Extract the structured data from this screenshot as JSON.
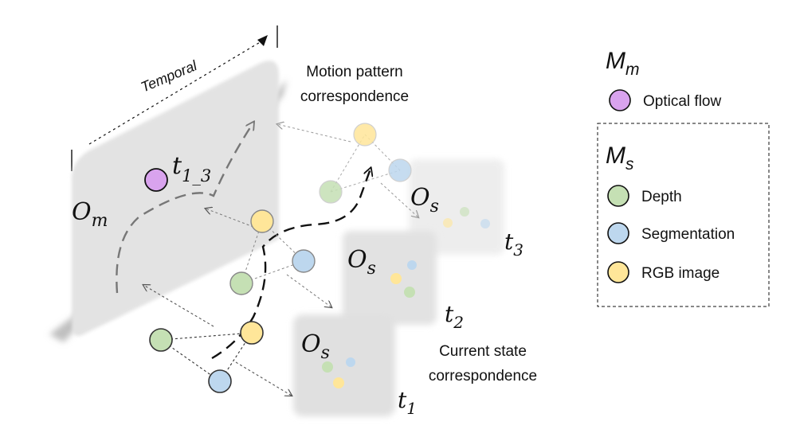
{
  "temporal_label": "Temporal",
  "motion_label_line1": "Motion pattern",
  "motion_label_line2": "correspondence",
  "current_label_line1": "Current state",
  "current_label_line2": "correspondence",
  "om": {
    "main": "O",
    "sub": "m"
  },
  "os": {
    "main": "O",
    "sub": "s"
  },
  "t13": {
    "main": "t",
    "sub": "1_3"
  },
  "t1": {
    "main": "t",
    "sub": "1"
  },
  "t2": {
    "main": "t",
    "sub": "2"
  },
  "t3": {
    "main": "t",
    "sub": "3"
  },
  "legend": {
    "mm": {
      "main": "M",
      "sub": "m"
    },
    "ms": {
      "main": "M",
      "sub": "s"
    },
    "optical_flow": "Optical flow",
    "depth": "Depth",
    "segmentation": "Segmentation",
    "rgb": "RGB image"
  },
  "colors": {
    "optical_flow": "#d9a3ee",
    "depth": "#c5e0b4",
    "segmentation": "#bdd7ee",
    "rgb": "#ffe699",
    "panel": "#e6e6e6"
  }
}
